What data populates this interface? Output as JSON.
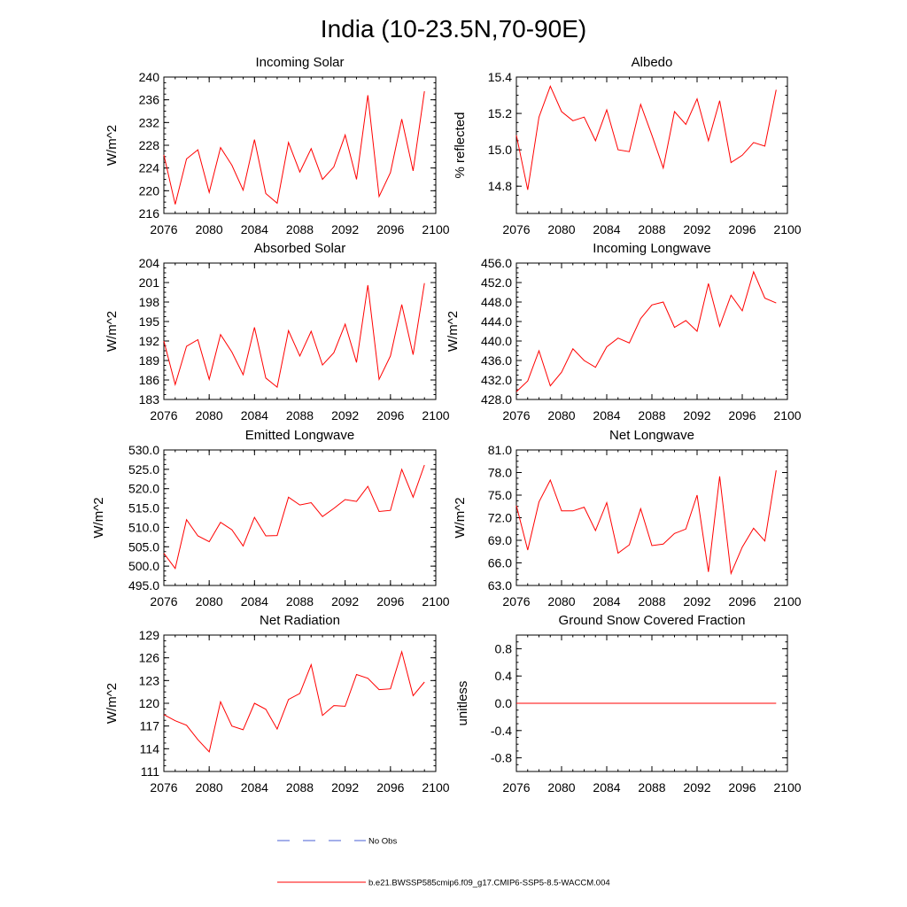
{
  "title": "India (10-23.5N,70-90E)",
  "colors": {
    "series": "#ff0000",
    "obs": "#4a5fd6",
    "axis": "#000000"
  },
  "chart_data": [
    {
      "type": "line",
      "title": "Incoming Solar",
      "xlabel": "",
      "ylabel": "W/m^2",
      "xlim": [
        2076,
        2100
      ],
      "ylim": [
        216,
        240
      ],
      "xticks": [
        2076,
        2080,
        2084,
        2088,
        2092,
        2096,
        2100
      ],
      "xtick_labels": [
        "2076",
        "2080",
        "2084",
        "2088",
        "2092",
        "2096",
        "2100"
      ],
      "yticks": [
        216,
        220,
        224,
        228,
        232,
        236,
        240
      ],
      "ytick_labels": [
        "216",
        "220",
        "224",
        "228",
        "232",
        "236",
        "240"
      ],
      "x": [
        2076,
        2077,
        2078,
        2079,
        2080,
        2081,
        2082,
        2083,
        2084,
        2085,
        2086,
        2087,
        2088,
        2089,
        2090,
        2091,
        2092,
        2093,
        2094,
        2095,
        2096,
        2097,
        2098,
        2099
      ],
      "values": [
        226.3,
        217.6,
        225.6,
        227.2,
        219.7,
        227.6,
        224.5,
        220.1,
        229.0,
        219.5,
        217.8,
        228.5,
        223.3,
        227.4,
        222.0,
        224.2,
        229.8,
        222.0,
        236.8,
        219.0,
        223.2,
        232.6,
        223.5,
        237.5
      ]
    },
    {
      "type": "line",
      "title": "Albedo",
      "xlabel": "",
      "ylabel": "% reflected",
      "xlim": [
        2076,
        2100
      ],
      "ylim": [
        14.65,
        15.4
      ],
      "xticks": [
        2076,
        2080,
        2084,
        2088,
        2092,
        2096,
        2100
      ],
      "xtick_labels": [
        "2076",
        "2080",
        "2084",
        "2088",
        "2092",
        "2096",
        "2100"
      ],
      "yticks": [
        14.8,
        15.0,
        15.2,
        15.4
      ],
      "ytick_labels": [
        "14.8",
        "15.0",
        "15.2",
        "15.4"
      ],
      "x": [
        2076,
        2077,
        2078,
        2079,
        2080,
        2081,
        2082,
        2083,
        2084,
        2085,
        2086,
        2087,
        2088,
        2089,
        2090,
        2091,
        2092,
        2093,
        2094,
        2095,
        2096,
        2097,
        2098,
        2099
      ],
      "values": [
        15.08,
        14.78,
        15.18,
        15.35,
        15.21,
        15.16,
        15.18,
        15.05,
        15.22,
        15.0,
        14.99,
        15.25,
        15.08,
        14.9,
        15.21,
        15.14,
        15.28,
        15.05,
        15.27,
        14.93,
        14.97,
        15.04,
        15.02,
        15.33
      ]
    },
    {
      "type": "line",
      "title": "Absorbed Solar",
      "xlabel": "",
      "ylabel": "W/m^2",
      "xlim": [
        2076,
        2100
      ],
      "ylim": [
        183,
        204
      ],
      "xticks": [
        2076,
        2080,
        2084,
        2088,
        2092,
        2096,
        2100
      ],
      "xtick_labels": [
        "2076",
        "2080",
        "2084",
        "2088",
        "2092",
        "2096",
        "2100"
      ],
      "yticks": [
        183,
        186,
        189,
        192,
        195,
        198,
        201,
        204
      ],
      "ytick_labels": [
        "183",
        "186",
        "189",
        "192",
        "195",
        "198",
        "201",
        "204"
      ],
      "x": [
        2076,
        2077,
        2078,
        2079,
        2080,
        2081,
        2082,
        2083,
        2084,
        2085,
        2086,
        2087,
        2088,
        2089,
        2090,
        2091,
        2092,
        2093,
        2094,
        2095,
        2096,
        2097,
        2098,
        2099
      ],
      "values": [
        192.0,
        185.3,
        191.2,
        192.2,
        186.1,
        193.0,
        190.3,
        186.8,
        194.1,
        186.3,
        184.9,
        193.6,
        189.7,
        193.5,
        188.3,
        190.2,
        194.6,
        188.7,
        200.6,
        186.1,
        189.7,
        197.6,
        189.9,
        200.9
      ]
    },
    {
      "type": "line",
      "title": "Incoming Longwave",
      "xlabel": "",
      "ylabel": "W/m^2",
      "xlim": [
        2076,
        2100
      ],
      "ylim": [
        428,
        456
      ],
      "xticks": [
        2076,
        2080,
        2084,
        2088,
        2092,
        2096,
        2100
      ],
      "xtick_labels": [
        "2076",
        "2080",
        "2084",
        "2088",
        "2092",
        "2096",
        "2100"
      ],
      "yticks": [
        428,
        432,
        436,
        440,
        444,
        448,
        452,
        456
      ],
      "ytick_labels": [
        "428.0",
        "432.0",
        "436.0",
        "440.0",
        "444.0",
        "448.0",
        "452.0",
        "456.0"
      ],
      "x": [
        2076,
        2077,
        2078,
        2079,
        2080,
        2081,
        2082,
        2083,
        2084,
        2085,
        2086,
        2087,
        2088,
        2089,
        2090,
        2091,
        2092,
        2093,
        2094,
        2095,
        2096,
        2097,
        2098,
        2099
      ],
      "values": [
        429.6,
        431.8,
        438.0,
        430.8,
        433.6,
        438.4,
        436.0,
        434.6,
        438.8,
        440.6,
        439.6,
        444.6,
        447.4,
        448.0,
        442.8,
        444.2,
        442.0,
        451.8,
        443.0,
        449.4,
        446.2,
        454.2,
        448.8,
        447.8
      ]
    },
    {
      "type": "line",
      "title": "Emitted Longwave",
      "xlabel": "",
      "ylabel": "W/m^2",
      "xlim": [
        2076,
        2100
      ],
      "ylim": [
        495,
        530
      ],
      "xticks": [
        2076,
        2080,
        2084,
        2088,
        2092,
        2096,
        2100
      ],
      "xtick_labels": [
        "2076",
        "2080",
        "2084",
        "2088",
        "2092",
        "2096",
        "2100"
      ],
      "yticks": [
        495,
        500,
        505,
        510,
        515,
        520,
        525,
        530
      ],
      "ytick_labels": [
        "495.0",
        "500.0",
        "505.0",
        "510.0",
        "515.0",
        "520.0",
        "525.0",
        "530.0"
      ],
      "x": [
        2076,
        2077,
        2078,
        2079,
        2080,
        2081,
        2082,
        2083,
        2084,
        2085,
        2086,
        2087,
        2088,
        2089,
        2090,
        2091,
        2092,
        2093,
        2094,
        2095,
        2096,
        2097,
        2098,
        2099
      ],
      "values": [
        503.3,
        499.4,
        512.0,
        507.8,
        506.3,
        511.3,
        509.4,
        505.2,
        512.6,
        507.8,
        507.9,
        517.8,
        515.8,
        516.4,
        512.8,
        514.9,
        517.2,
        516.7,
        520.6,
        514.1,
        514.4,
        525.0,
        517.8,
        526.1
      ]
    },
    {
      "type": "line",
      "title": "Net Longwave",
      "xlabel": "",
      "ylabel": "W/m^2",
      "xlim": [
        2076,
        2100
      ],
      "ylim": [
        63,
        81
      ],
      "xticks": [
        2076,
        2080,
        2084,
        2088,
        2092,
        2096,
        2100
      ],
      "xtick_labels": [
        "2076",
        "2080",
        "2084",
        "2088",
        "2092",
        "2096",
        "2100"
      ],
      "yticks": [
        63,
        66,
        69,
        72,
        75,
        78,
        81
      ],
      "ytick_labels": [
        "63.0",
        "66.0",
        "69.0",
        "72.0",
        "75.0",
        "78.0",
        "81.0"
      ],
      "x": [
        2076,
        2077,
        2078,
        2079,
        2080,
        2081,
        2082,
        2083,
        2084,
        2085,
        2086,
        2087,
        2088,
        2089,
        2090,
        2091,
        2092,
        2093,
        2094,
        2095,
        2096,
        2097,
        2098,
        2099
      ],
      "values": [
        73.6,
        67.7,
        74.1,
        77.0,
        72.9,
        72.9,
        73.4,
        70.3,
        74.0,
        67.3,
        68.4,
        73.2,
        68.3,
        68.5,
        69.9,
        70.5,
        75.0,
        64.8,
        77.5,
        64.6,
        68.1,
        70.6,
        68.9,
        78.3
      ]
    },
    {
      "type": "line",
      "title": "Net Radiation",
      "xlabel": "",
      "ylabel": "W/m^2",
      "xlim": [
        2076,
        2100
      ],
      "ylim": [
        111,
        129
      ],
      "xticks": [
        2076,
        2080,
        2084,
        2088,
        2092,
        2096,
        2100
      ],
      "xtick_labels": [
        "2076",
        "2080",
        "2084",
        "2088",
        "2092",
        "2096",
        "2100"
      ],
      "yticks": [
        111,
        114,
        117,
        120,
        123,
        126,
        129
      ],
      "ytick_labels": [
        "111",
        "114",
        "117",
        "120",
        "123",
        "126",
        "129"
      ],
      "x": [
        2076,
        2077,
        2078,
        2079,
        2080,
        2081,
        2082,
        2083,
        2084,
        2085,
        2086,
        2087,
        2088,
        2089,
        2090,
        2091,
        2092,
        2093,
        2094,
        2095,
        2096,
        2097,
        2098,
        2099
      ],
      "values": [
        118.5,
        117.7,
        117.1,
        115.2,
        113.6,
        120.2,
        117.0,
        116.5,
        120.0,
        119.2,
        116.6,
        120.5,
        121.3,
        125.1,
        118.4,
        119.7,
        119.6,
        123.8,
        123.3,
        121.8,
        121.9,
        126.8,
        121.0,
        122.8
      ]
    },
    {
      "type": "line",
      "title": "Ground Snow Covered Fraction",
      "xlabel": "",
      "ylabel": "unitless",
      "xlim": [
        2076,
        2100
      ],
      "ylim": [
        -1.0,
        1.0
      ],
      "xticks": [
        2076,
        2080,
        2084,
        2088,
        2092,
        2096,
        2100
      ],
      "xtick_labels": [
        "2076",
        "2080",
        "2084",
        "2088",
        "2092",
        "2096",
        "2100"
      ],
      "yticks": [
        -0.8,
        -0.4,
        0.0,
        0.4,
        0.8
      ],
      "ytick_labels": [
        "-0.8",
        "-0.4",
        "0.0",
        "0.4",
        "0.8"
      ],
      "x": [
        2076,
        2077,
        2078,
        2079,
        2080,
        2081,
        2082,
        2083,
        2084,
        2085,
        2086,
        2087,
        2088,
        2089,
        2090,
        2091,
        2092,
        2093,
        2094,
        2095,
        2096,
        2097,
        2098,
        2099
      ],
      "values": [
        0,
        0,
        0,
        0,
        0,
        0,
        0,
        0,
        0,
        0,
        0,
        0,
        0,
        0,
        0,
        0,
        0,
        0,
        0,
        0,
        0,
        0,
        0,
        0
      ]
    }
  ],
  "legend": {
    "obs_label": "No Obs",
    "model_label": "b.e21.BWSSP585cmip6.f09_g17.CMIP6-SSP5-8.5-WACCM.004"
  }
}
